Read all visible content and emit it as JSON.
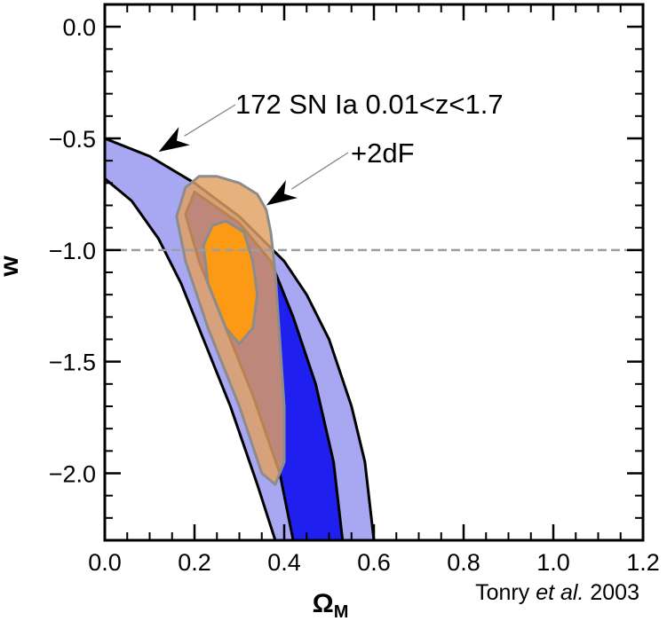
{
  "chart_data": {
    "type": "contour",
    "xlabel": "Ω",
    "xlabel_sub": "M",
    "ylabel": "w",
    "xlim": [
      0.0,
      1.2
    ],
    "ylim": [
      -2.3,
      0.1
    ],
    "xticks": [
      0.0,
      0.2,
      0.4,
      0.6,
      0.8,
      1.0,
      1.2
    ],
    "yticks": [
      0.0,
      -0.5,
      -1.0,
      -1.5,
      -2.0
    ],
    "xtick_labels": [
      "0.0",
      "0.2",
      "0.4",
      "0.6",
      "0.8",
      "1.0",
      "1.2"
    ],
    "ytick_labels": [
      "0.0",
      "−0.5",
      "−1.0",
      "−1.5",
      "−2.0"
    ],
    "grid": false,
    "reference_line": {
      "y": -1.0,
      "style": "dashed",
      "color": "#9e9e9e"
    },
    "series": [
      {
        "role": "outer",
        "color": "#a8a8f2",
        "points": [
          [
            0.0,
            -0.5
          ],
          [
            0.1,
            -0.58
          ],
          [
            0.2,
            -0.7
          ],
          [
            0.3,
            -0.85
          ],
          [
            0.4,
            -1.05
          ],
          [
            0.45,
            -1.2
          ],
          [
            0.5,
            -1.4
          ],
          [
            0.55,
            -1.7
          ],
          [
            0.58,
            -1.95
          ],
          [
            0.6,
            -2.3
          ],
          [
            0.38,
            -2.3
          ],
          [
            0.34,
            -2.05
          ],
          [
            0.28,
            -1.7
          ],
          [
            0.22,
            -1.4
          ],
          [
            0.17,
            -1.15
          ],
          [
            0.12,
            -0.95
          ],
          [
            0.06,
            -0.78
          ],
          [
            0.0,
            -0.68
          ]
        ]
      },
      {
        "role": "inner",
        "color": "#1f1ff0",
        "points": [
          [
            0.2,
            -0.74
          ],
          [
            0.3,
            -0.88
          ],
          [
            0.37,
            -1.05
          ],
          [
            0.42,
            -1.3
          ],
          [
            0.47,
            -1.6
          ],
          [
            0.51,
            -1.95
          ],
          [
            0.53,
            -2.3
          ],
          [
            0.42,
            -2.3
          ],
          [
            0.39,
            -2.0
          ],
          [
            0.33,
            -1.65
          ],
          [
            0.27,
            -1.35
          ],
          [
            0.21,
            -1.05
          ],
          [
            0.18,
            -0.84
          ]
        ]
      },
      {
        "role": "outer",
        "color": "#e0a060",
        "points": [
          [
            0.25,
            -0.67
          ],
          [
            0.3,
            -0.7
          ],
          [
            0.34,
            -0.75
          ],
          [
            0.36,
            -0.82
          ],
          [
            0.37,
            -0.92
          ],
          [
            0.38,
            -1.1
          ],
          [
            0.39,
            -1.4
          ],
          [
            0.4,
            -1.7
          ],
          [
            0.4,
            -1.95
          ],
          [
            0.38,
            -2.05
          ],
          [
            0.35,
            -2.0
          ],
          [
            0.3,
            -1.7
          ],
          [
            0.23,
            -1.35
          ],
          [
            0.18,
            -1.05
          ],
          [
            0.16,
            -0.85
          ],
          [
            0.18,
            -0.72
          ],
          [
            0.21,
            -0.67
          ]
        ]
      },
      {
        "role": "inner",
        "color": "#ff9a10",
        "points": [
          [
            0.27,
            -0.87
          ],
          [
            0.31,
            -0.92
          ],
          [
            0.33,
            -1.05
          ],
          [
            0.34,
            -1.2
          ],
          [
            0.33,
            -1.35
          ],
          [
            0.3,
            -1.42
          ],
          [
            0.27,
            -1.35
          ],
          [
            0.23,
            -1.15
          ],
          [
            0.22,
            -0.98
          ],
          [
            0.24,
            -0.89
          ]
        ]
      }
    ],
    "annotations": [
      {
        "text": "172 SN Ia 0.01<z<1.7",
        "arrow_to": [
          0.12,
          -0.56
        ]
      },
      {
        "text": "+2dF",
        "arrow_to": [
          0.36,
          -0.8
        ]
      }
    ],
    "credit": {
      "name": "Tonry",
      "etal": "et al.",
      "year": "2003"
    }
  }
}
